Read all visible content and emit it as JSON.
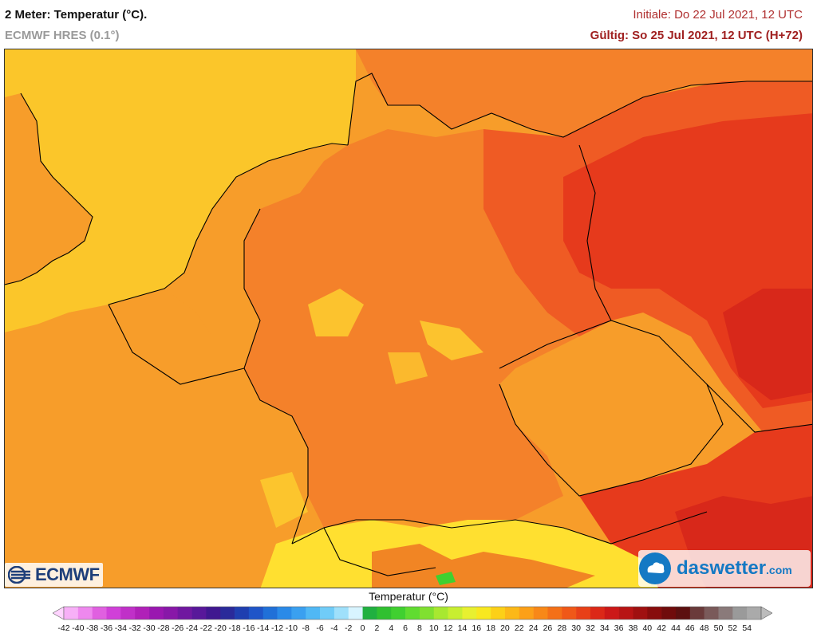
{
  "header": {
    "title": "2 Meter: Temperatur (°C).",
    "model": "ECMWF HRES (0.1°)",
    "initial": "Initiale: Do 22 Jul 2021, 12 UTC",
    "valid": "Gültig: So 25 Jul 2021, 12 UTC (H+72)"
  },
  "logos": {
    "ecmwf": "ECMWF",
    "daswetter_main": "daswetter",
    "daswetter_suffix": ".com"
  },
  "legend": {
    "title": "Temperatur (°C)",
    "labels": [
      "-42",
      "-40",
      "-38",
      "-36",
      "-34",
      "-32",
      "-30",
      "-28",
      "-26",
      "-24",
      "-22",
      "-20",
      "-18",
      "-16",
      "-14",
      "-12",
      "-10",
      "-8",
      "-6",
      "-4",
      "-2",
      "0",
      "2",
      "4",
      "6",
      "8",
      "10",
      "12",
      "14",
      "16",
      "18",
      "20",
      "22",
      "24",
      "26",
      "28",
      "30",
      "32",
      "34",
      "36",
      "38",
      "40",
      "42",
      "44",
      "46",
      "48",
      "50",
      "52",
      "54"
    ],
    "colors": [
      "#ffd4ff",
      "#f7b0f7",
      "#ee88ee",
      "#e060e0",
      "#d040d8",
      "#c030c8",
      "#b020b8",
      "#9a18b0",
      "#8818a8",
      "#7018a0",
      "#58189a",
      "#401890",
      "#2a2a9a",
      "#1f3fb0",
      "#1f55c8",
      "#2070d8",
      "#2a8ae8",
      "#3aa0f0",
      "#50b8f5",
      "#70ccf8",
      "#9fe0fb",
      "#d8f4ff",
      "#20b040",
      "#30c030",
      "#40d030",
      "#60dc30",
      "#80e030",
      "#a8e830",
      "#c8ee30",
      "#e8f030",
      "#f8e820",
      "#fcd018",
      "#fcb818",
      "#fca018",
      "#f88818",
      "#f47018",
      "#f05818",
      "#e84018",
      "#dc2818",
      "#cc1818",
      "#b81414",
      "#a01010",
      "#880c0c",
      "#700c0c",
      "#5c1010",
      "#6a3a3a",
      "#7a5a5a",
      "#8a7a7a",
      "#9a9a9a",
      "#aaaaaa",
      "#bcbcbc"
    ]
  },
  "map": {
    "colors": {
      "sea_north": "#fbc62a",
      "warm_low": "#f79d2a",
      "warm_mid": "#f4812a",
      "hot": "#ef5b24",
      "very_hot": "#e63a1c",
      "hottest": "#d8281a",
      "alps_highland": "#ffe030",
      "border": "#000000"
    }
  }
}
